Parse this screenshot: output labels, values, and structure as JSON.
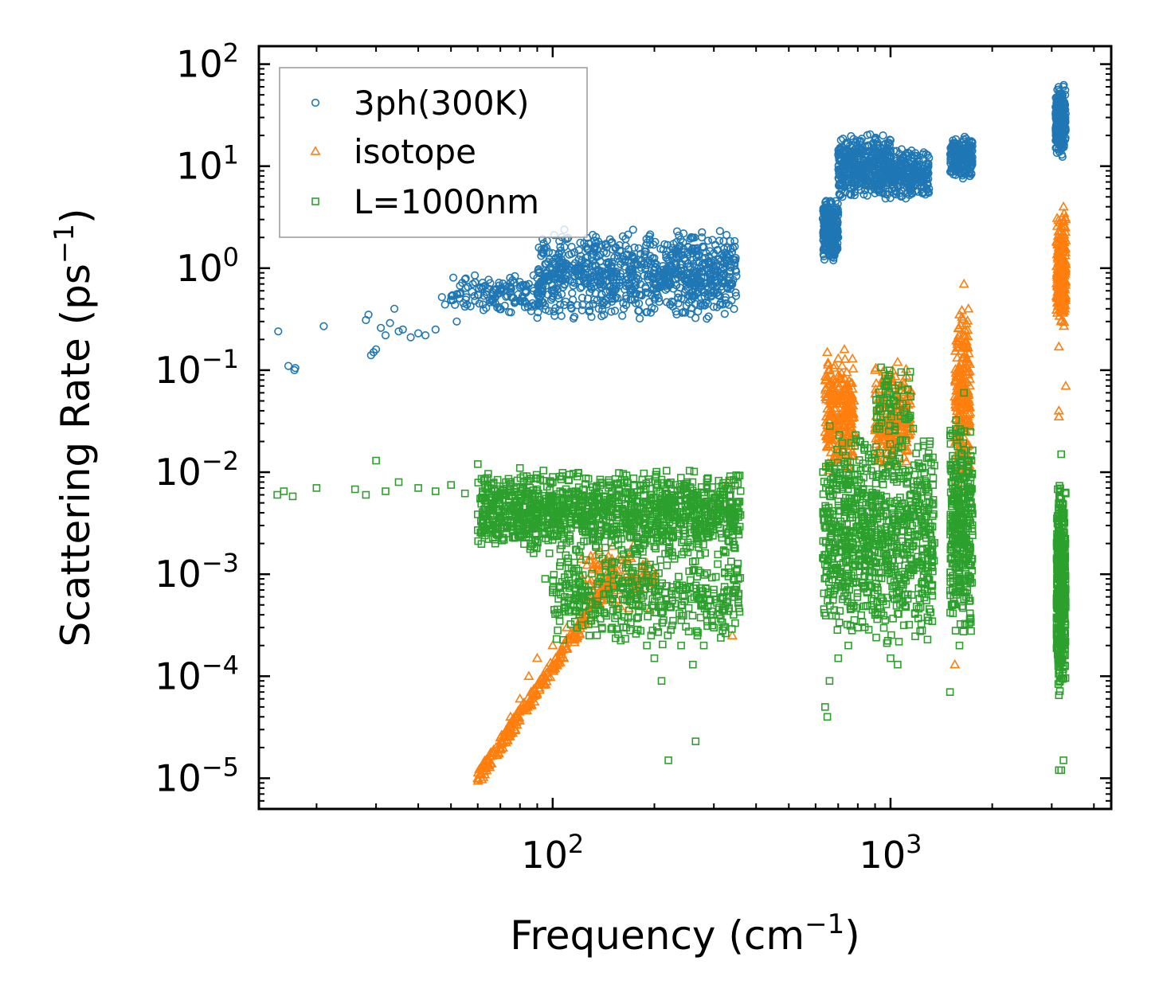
{
  "chart_data": {
    "type": "scatter",
    "xscale": "log",
    "yscale": "log",
    "xlim": [
      13.5,
      4500
    ],
    "ylim": [
      5e-06,
      150
    ],
    "xlabel": "Frequency (cm",
    "xlabel_sup": "−1",
    "xlabel_end": ")",
    "ylabel": "Scattering Rate (ps",
    "ylabel_sup": "−1",
    "ylabel_end": ")",
    "x_ticks": [
      {
        "value": 100,
        "base": "10",
        "exp": "2"
      },
      {
        "value": 1000,
        "base": "10",
        "exp": "3"
      }
    ],
    "y_ticks": [
      {
        "value": 1e-05,
        "base": "10",
        "exp": "−5"
      },
      {
        "value": 0.0001,
        "base": "10",
        "exp": "−4"
      },
      {
        "value": 0.001,
        "base": "10",
        "exp": "−3"
      },
      {
        "value": 0.01,
        "base": "10",
        "exp": "−2"
      },
      {
        "value": 0.1,
        "base": "10",
        "exp": "−1"
      },
      {
        "value": 1,
        "base": "10",
        "exp": "0"
      },
      {
        "value": 10,
        "base": "10",
        "exp": "1"
      },
      {
        "value": 100,
        "base": "10",
        "exp": "2"
      }
    ],
    "legend_position": "top-left",
    "series": [
      {
        "name": "3ph(300K)",
        "marker": "circle",
        "color": "#1f77b4",
        "points": [
          [
            15.4,
            0.24
          ],
          [
            16.5,
            0.11
          ],
          [
            17.2,
            0.1
          ],
          [
            17.3,
            0.105
          ],
          [
            21,
            0.27
          ],
          [
            28,
            0.31
          ],
          [
            28.5,
            0.35
          ],
          [
            29,
            0.14
          ],
          [
            29.5,
            0.15
          ],
          [
            30,
            0.16
          ],
          [
            31,
            0.26
          ],
          [
            32,
            0.22
          ],
          [
            33,
            0.29
          ],
          [
            34,
            0.4
          ],
          [
            35,
            0.24
          ],
          [
            36,
            0.25
          ],
          [
            38,
            0.21
          ],
          [
            40,
            0.23
          ],
          [
            42,
            0.22
          ],
          [
            45,
            0.25
          ],
          [
            47,
            0.52
          ],
          [
            48,
            0.44
          ],
          [
            50,
            0.49
          ],
          [
            52,
            0.3
          ],
          [
            55,
            0.42
          ],
          [
            58,
            0.7
          ],
          [
            60,
            0.55
          ],
          [
            62,
            0.72
          ],
          [
            66,
            0.48
          ],
          [
            70,
            0.6
          ],
          [
            75,
            0.72
          ],
          [
            80,
            0.65
          ],
          [
            85,
            0.7
          ],
          [
            90,
            0.8
          ],
          [
            95,
            1.1
          ],
          [
            100,
            1.4
          ],
          [
            110,
            1.1
          ],
          [
            120,
            0.85
          ],
          [
            130,
            0.65
          ],
          [
            140,
            0.55
          ],
          [
            150,
            0.5
          ],
          [
            165,
            0.5
          ],
          [
            180,
            0.45
          ],
          [
            200,
            0.4
          ],
          [
            220,
            0.7
          ],
          [
            240,
            1.0
          ],
          [
            260,
            1.4
          ],
          [
            280,
            1.6
          ],
          [
            300,
            1.4
          ],
          [
            320,
            1.3
          ],
          [
            345,
            1.2
          ],
          [
            650,
            3.0
          ],
          [
            660,
            1.4
          ],
          [
            700,
            2.0
          ],
          [
            720,
            5.0
          ],
          [
            750,
            7.0
          ],
          [
            800,
            8.0
          ],
          [
            850,
            12.0
          ],
          [
            900,
            18.0
          ],
          [
            950,
            20.0
          ],
          [
            1000,
            14.0
          ],
          [
            1050,
            10.0
          ],
          [
            1100,
            7.0
          ],
          [
            1150,
            6.0
          ],
          [
            1200,
            7.0
          ],
          [
            1260,
            8.0
          ],
          [
            1300,
            6.0
          ],
          [
            1550,
            12.0
          ],
          [
            1600,
            16.0
          ],
          [
            1650,
            15.0
          ],
          [
            1700,
            13.0
          ],
          [
            3100,
            25.0
          ],
          [
            3150,
            40.0
          ],
          [
            3200,
            50.0
          ],
          [
            3250,
            60.0
          ],
          [
            3280,
            30.0
          ]
        ],
        "clusters": [
          {
            "x": [
              90,
              350
            ],
            "y": [
              0.3,
              2.5
            ],
            "n": 900
          },
          {
            "x": [
              50,
              95
            ],
            "y": [
              0.35,
              0.9
            ],
            "n": 140
          },
          {
            "x": [
              630,
              700
            ],
            "y": [
              1.1,
              5.0
            ],
            "n": 250
          },
          {
            "x": [
              700,
              1000
            ],
            "y": [
              4.5,
              22
            ],
            "n": 420
          },
          {
            "x": [
              1000,
              1300
            ],
            "y": [
              4.5,
              15
            ],
            "n": 240
          },
          {
            "x": [
              1500,
              1750
            ],
            "y": [
              7.5,
              20
            ],
            "n": 220
          },
          {
            "x": [
              3080,
              3300
            ],
            "y": [
              12,
              65
            ],
            "n": 300
          }
        ]
      },
      {
        "name": "isotope",
        "marker": "triangle",
        "color": "#ff7f0e",
        "points": [
          [
            60,
            1e-05
          ],
          [
            65,
            1.5e-05
          ],
          [
            70,
            2.5e-05
          ],
          [
            75,
            4e-05
          ],
          [
            80,
            6e-05
          ],
          [
            85,
            0.0001
          ],
          [
            90,
            0.00015
          ],
          [
            100,
            0.0002
          ],
          [
            110,
            0.0003
          ],
          [
            120,
            0.0004
          ],
          [
            130,
            0.0006
          ],
          [
            140,
            0.0009
          ],
          [
            150,
            0.0012
          ],
          [
            330,
            0.008
          ],
          [
            340,
            0.00025
          ],
          [
            650,
            0.15
          ],
          [
            700,
            0.13
          ],
          [
            730,
            0.16
          ],
          [
            900,
            0.1
          ],
          [
            1000,
            0.09
          ],
          [
            1050,
            0.12
          ],
          [
            1550,
            0.00013
          ],
          [
            1600,
            0.35
          ],
          [
            1650,
            0.7
          ],
          [
            1700,
            0.4
          ],
          [
            3150,
            0.17
          ],
          [
            3150,
            0.04
          ],
          [
            3150,
            0.035
          ],
          [
            3200,
            0.3
          ],
          [
            3300,
            0.07
          ],
          [
            3250,
            4.0
          ],
          [
            3300,
            3.0
          ]
        ],
        "clusters": [
          {
            "x": [
              60,
              150
            ],
            "y": [
              1e-05,
              0.0009
            ],
            "n": 280,
            "trend": true
          },
          {
            "x": [
              120,
              200
            ],
            "y": [
              0.0004,
              0.002
            ],
            "n": 100
          },
          {
            "x": [
              640,
              780
            ],
            "y": [
              0.01,
              0.15
            ],
            "n": 240
          },
          {
            "x": [
              900,
              1150
            ],
            "y": [
              0.01,
              0.12
            ],
            "n": 220
          },
          {
            "x": [
              1550,
              1720
            ],
            "y": [
              0.005,
              0.6
            ],
            "n": 220
          },
          {
            "x": [
              3100,
              3300
            ],
            "y": [
              0.25,
              3.5
            ],
            "n": 260
          }
        ]
      },
      {
        "name": "L=1000nm",
        "marker": "square",
        "color": "#2ca02c",
        "points": [
          [
            15.3,
            0.006
          ],
          [
            16,
            0.0065
          ],
          [
            17,
            0.0058
          ],
          [
            20,
            0.007
          ],
          [
            26,
            0.0068
          ],
          [
            28,
            0.006
          ],
          [
            30,
            0.013
          ],
          [
            32,
            0.0065
          ],
          [
            35,
            0.008
          ],
          [
            40,
            0.007
          ],
          [
            45,
            0.0065
          ],
          [
            50,
            0.0075
          ],
          [
            55,
            0.0062
          ],
          [
            60,
            0.012
          ],
          [
            62,
            0.0065
          ],
          [
            70,
            0.0068
          ],
          [
            75,
            0.0072
          ],
          [
            80,
            0.011
          ],
          [
            90,
            0.0068
          ],
          [
            95,
            0.0009
          ],
          [
            100,
            0.0007
          ],
          [
            105,
            0.0012
          ],
          [
            110,
            0.0008
          ],
          [
            120,
            0.0005
          ],
          [
            130,
            0.0004
          ],
          [
            140,
            0.0003
          ],
          [
            150,
            0.0003
          ],
          [
            165,
            0.0003
          ],
          [
            170,
            0.0006
          ],
          [
            180,
            0.0005
          ],
          [
            190,
            0.0002
          ],
          [
            200,
            0.00015
          ],
          [
            210,
            9e-05
          ],
          [
            220,
            1.5e-05
          ],
          [
            240,
            0.0002
          ],
          [
            260,
            0.00013
          ],
          [
            265,
            2.3e-05
          ],
          [
            280,
            0.0002
          ],
          [
            300,
            0.0003
          ],
          [
            330,
            0.0007
          ],
          [
            640,
            5e-05
          ],
          [
            650,
            4e-05
          ],
          [
            660,
            9e-05
          ],
          [
            700,
            0.00015
          ],
          [
            750,
            0.0002
          ],
          [
            800,
            0.0003
          ],
          [
            900,
            0.0004
          ],
          [
            1000,
            0.00015
          ],
          [
            1050,
            0.00013
          ],
          [
            1100,
            0.001
          ],
          [
            1500,
            7e-05
          ],
          [
            1600,
            0.0002
          ],
          [
            1650,
            0.06
          ],
          [
            1700,
            0.004
          ],
          [
            3150,
            1.2e-05
          ],
          [
            3200,
            1.2e-05
          ],
          [
            3250,
            1.5e-05
          ],
          [
            3200,
            0.015
          ]
        ],
        "clusters": [
          {
            "x": [
              60,
              360
            ],
            "y": [
              0.0015,
              0.011
            ],
            "n": 1300
          },
          {
            "x": [
              100,
              360
            ],
            "y": [
              0.0002,
              0.002
            ],
            "n": 420
          },
          {
            "x": [
              630,
              1350
            ],
            "y": [
              0.0002,
              0.03
            ],
            "n": 900
          },
          {
            "x": [
              900,
              1150
            ],
            "y": [
              0.02,
              0.12
            ],
            "n": 60
          },
          {
            "x": [
              1500,
              1750
            ],
            "y": [
              0.0002,
              0.04
            ],
            "n": 330
          },
          {
            "x": [
              3100,
              3300
            ],
            "y": [
              5e-05,
              0.01
            ],
            "n": 420
          }
        ]
      }
    ]
  }
}
